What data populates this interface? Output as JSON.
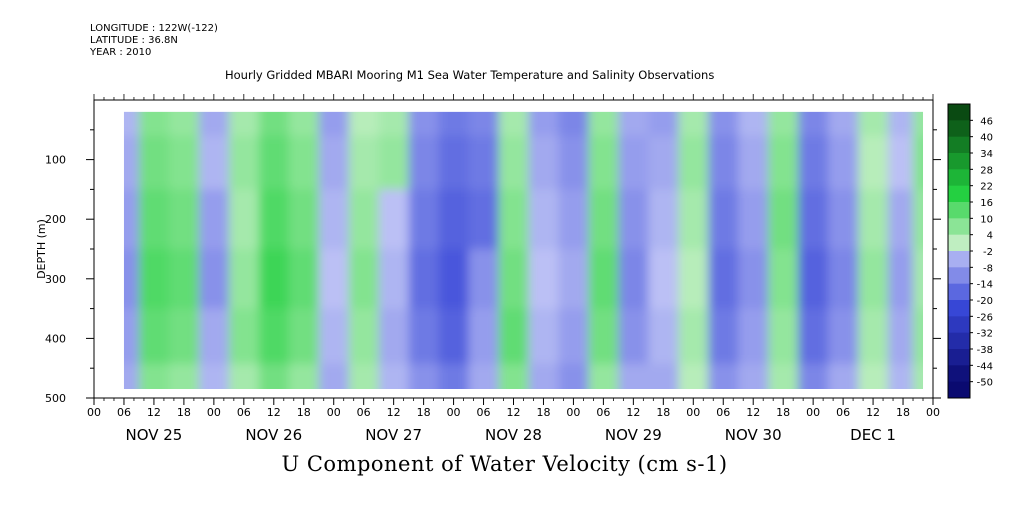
{
  "header": {
    "longitude": "LONGITUDE : 122W(-122)",
    "latitude": "LATITUDE : 36.8N",
    "year": "YEAR : 2010",
    "title": "Hourly Gridded MBARI Mooring M1 Sea Water Temperature and Salinity Observations"
  },
  "main_title": "U Component of Water Velocity (cm s-1)",
  "colors": {
    "negative_dark": "#0a0a70",
    "negative_mid": "#3848d8",
    "negative_light": "#c8ccf8",
    "positive_light": "#c8f0c8",
    "positive_mid": "#22d040",
    "positive_dark": "#0a4a12"
  },
  "chart_data": {
    "type": "heatmap",
    "title": "U Component of Water Velocity (cm s-1)",
    "ylabel": "DEPTH (m)",
    "xlabel": "",
    "ylim": [
      500,
      0
    ],
    "xlim": [
      "NOV 25 00",
      "DEC 2 00"
    ],
    "y_ticks": [
      "100",
      "200",
      "300",
      "400",
      "500"
    ],
    "y_tick_values": [
      100,
      200,
      300,
      400,
      500
    ],
    "x_hour_labels": [
      "00",
      "06",
      "12",
      "18",
      "00",
      "06",
      "12",
      "18",
      "00",
      "06",
      "12",
      "18",
      "00",
      "06",
      "12",
      "18",
      "00",
      "06",
      "12",
      "18",
      "00",
      "06",
      "12",
      "18",
      "00",
      "06",
      "12",
      "18",
      "00"
    ],
    "x_day_labels": [
      "NOV 25",
      "NOV 26",
      "NOV 27",
      "NOV 28",
      "NOV 29",
      "NOV 30",
      "DEC  1"
    ],
    "data_extent": {
      "depth_min": 20,
      "depth_max": 485,
      "time_start_hours": 6,
      "time_end_hours": 166
    },
    "colorbar_levels": [
      "46",
      "40",
      "34",
      "28",
      "22",
      "16",
      "10",
      "4",
      "-2",
      "-8",
      "-14",
      "-20",
      "-26",
      "-32",
      "-38",
      "-44",
      "-50"
    ],
    "colorbar_values": [
      46,
      40,
      34,
      28,
      22,
      16,
      10,
      4,
      -2,
      -8,
      -14,
      -20,
      -26,
      -32,
      -38,
      -44,
      -50
    ],
    "approx_field": {
      "time_hours_note": "hours since NOV 25 00",
      "time_hours": [
        6,
        12,
        18,
        24,
        30,
        36,
        42,
        48,
        54,
        60,
        66,
        72,
        78,
        84,
        90,
        96,
        102,
        108,
        114,
        120,
        126,
        132,
        138,
        144,
        150,
        156,
        162,
        166
      ],
      "depth_m": [
        20,
        100,
        200,
        300,
        400,
        485
      ],
      "u_cm_s": [
        [
          -4,
          8,
          6,
          -6,
          4,
          10,
          6,
          -8,
          2,
          4,
          -10,
          -14,
          -12,
          4,
          -8,
          -12,
          6,
          -6,
          -8,
          4,
          -10,
          -4,
          6,
          -12,
          -6,
          4,
          -4,
          6
        ],
        [
          -6,
          10,
          8,
          -4,
          6,
          12,
          8,
          -6,
          4,
          6,
          -12,
          -16,
          -14,
          6,
          -6,
          -10,
          8,
          -8,
          -6,
          6,
          -12,
          -6,
          8,
          -14,
          -8,
          2,
          -2,
          8
        ],
        [
          -8,
          12,
          10,
          -8,
          4,
          14,
          10,
          -4,
          6,
          -2,
          -14,
          -18,
          -16,
          8,
          -4,
          -8,
          10,
          -10,
          -4,
          4,
          -14,
          -8,
          10,
          -16,
          -10,
          4,
          -6,
          6
        ],
        [
          -10,
          14,
          12,
          -10,
          6,
          16,
          12,
          -2,
          8,
          -4,
          -16,
          -20,
          -10,
          10,
          -2,
          -6,
          12,
          -12,
          -2,
          2,
          -16,
          -10,
          8,
          -18,
          -12,
          6,
          -8,
          4
        ],
        [
          -8,
          12,
          10,
          -6,
          8,
          14,
          10,
          -4,
          6,
          -6,
          -14,
          -18,
          -8,
          12,
          -4,
          -8,
          10,
          -10,
          -4,
          4,
          -14,
          -8,
          6,
          -16,
          -10,
          4,
          -6,
          6
        ],
        [
          -6,
          8,
          6,
          -4,
          4,
          10,
          6,
          -6,
          4,
          -4,
          -10,
          -14,
          -6,
          8,
          -6,
          -10,
          6,
          -6,
          -6,
          2,
          -10,
          -6,
          4,
          -12,
          -6,
          2,
          -4,
          4
        ]
      ]
    }
  }
}
